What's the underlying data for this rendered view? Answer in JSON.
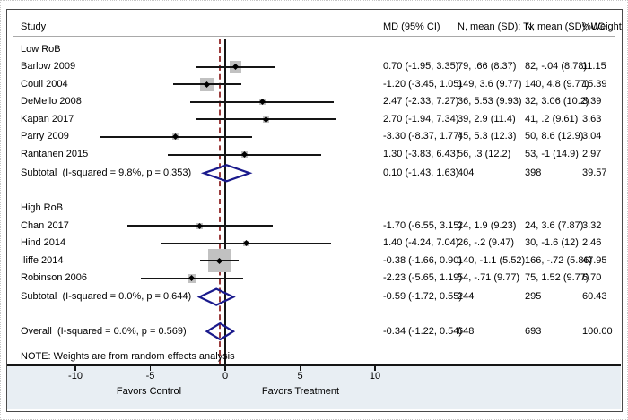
{
  "header": {
    "study": "Study",
    "md": "MD (95% CI)",
    "tx": "N, mean (SD); Tx",
    "uc": "N, mean (SD); UC",
    "weight": "%Weight"
  },
  "note": "NOTE: Weights are from random effects analysis",
  "axis": {
    "ticks": [
      -10,
      -5,
      0,
      5,
      10
    ],
    "xlim": [
      -13,
      13
    ],
    "null_line_at": 0,
    "overall_line_at": -0.34,
    "favors_left": "Favors Control",
    "favors_right": "Favors Treatment"
  },
  "colors": {
    "diamond": "#1a1a8c",
    "overall_dashed_line": "#9b3c3c",
    "square": "#c1c1c1",
    "ci_line": "#151515",
    "axis_area_bg": "#e8eef3"
  },
  "chart_data": {
    "type": "forest",
    "effect_measure": "MD",
    "groups": [
      {
        "label": "Low RoB",
        "studies": [
          {
            "study": "Barlow 2009",
            "md": 0.7,
            "ci_low": -1.95,
            "ci_high": 3.35,
            "md_text": "0.70 (-1.95, 3.35)",
            "tx": "79, .66 (8.37)",
            "uc": "82, -.04 (8.78)",
            "weight": 11.15,
            "weight_text": "11.15"
          },
          {
            "study": "Coull 2004",
            "md": -1.2,
            "ci_low": -3.45,
            "ci_high": 1.05,
            "md_text": "-1.20 (-3.45, 1.05)",
            "tx": "149, 3.6 (9.77)",
            "uc": "140, 4.8 (9.77)",
            "weight": 15.39,
            "weight_text": "15.39"
          },
          {
            "study": "DeMello 2008",
            "md": 2.47,
            "ci_low": -2.33,
            "ci_high": 7.27,
            "md_text": "2.47 (-2.33, 7.27)",
            "tx": "36, 5.53 (9.93)",
            "uc": "32, 3.06 (10.2)",
            "weight": 3.39,
            "weight_text": "3.39"
          },
          {
            "study": "Kapan 2017",
            "md": 2.7,
            "ci_low": -1.94,
            "ci_high": 7.34,
            "md_text": "2.70 (-1.94, 7.34)",
            "tx": "39, 2.9 (11.4)",
            "uc": "41, .2 (9.61)",
            "weight": 3.63,
            "weight_text": "3.63"
          },
          {
            "study": "Parry 2009",
            "md": -3.3,
            "ci_low": -8.37,
            "ci_high": 1.77,
            "md_text": "-3.30 (-8.37, 1.77)",
            "tx": "45, 5.3 (12.3)",
            "uc": "50, 8.6 (12.9)",
            "weight": 3.04,
            "weight_text": "3.04"
          },
          {
            "study": "Rantanen 2015",
            "md": 1.3,
            "ci_low": -3.83,
            "ci_high": 6.43,
            "md_text": "1.30 (-3.83, 6.43)",
            "tx": "56, .3 (12.2)",
            "uc": "53, -1 (14.9)",
            "weight": 2.97,
            "weight_text": "2.97"
          }
        ],
        "subtotal": {
          "study": "Subtotal  (I-squared = 9.8%, p = 0.353)",
          "md": 0.1,
          "ci_low": -1.43,
          "ci_high": 1.63,
          "md_text": "0.10 (-1.43, 1.63)",
          "tx": "404",
          "uc": "398",
          "weight_text": "39.57"
        }
      },
      {
        "label": "High RoB",
        "studies": [
          {
            "study": "Chan 2017",
            "md": -1.7,
            "ci_low": -6.55,
            "ci_high": 3.15,
            "md_text": "-1.70 (-6.55, 3.15)",
            "tx": "24, 1.9 (9.23)",
            "uc": "24, 3.6 (7.87)",
            "weight": 3.32,
            "weight_text": "3.32"
          },
          {
            "study": "Hind 2014",
            "md": 1.4,
            "ci_low": -4.24,
            "ci_high": 7.04,
            "md_text": "1.40 (-4.24, 7.04)",
            "tx": "26, -.2 (9.47)",
            "uc": "30, -1.6 (12)",
            "weight": 2.46,
            "weight_text": "2.46"
          },
          {
            "study": "Iliffe 2014",
            "md": -0.38,
            "ci_low": -1.66,
            "ci_high": 0.9,
            "md_text": "-0.38 (-1.66, 0.90)",
            "tx": "140, -1.1 (5.52)",
            "uc": "166, -.72 (5.86)",
            "weight": 47.95,
            "weight_text": "47.95"
          },
          {
            "study": "Robinson 2006",
            "md": -2.23,
            "ci_low": -5.65,
            "ci_high": 1.19,
            "md_text": "-2.23 (-5.65, 1.19)",
            "tx": "54, -.71 (9.77)",
            "uc": "75, 1.52 (9.77)",
            "weight": 6.7,
            "weight_text": "6.70"
          }
        ],
        "subtotal": {
          "study": "Subtotal  (I-squared = 0.0%, p = 0.644)",
          "md": -0.59,
          "ci_low": -1.72,
          "ci_high": 0.55,
          "md_text": "-0.59 (-1.72, 0.55)",
          "tx": "244",
          "uc": "295",
          "weight_text": "60.43"
        }
      }
    ],
    "overall": {
      "study": "Overall  (I-squared = 0.0%, p = 0.569)",
      "md": -0.34,
      "ci_low": -1.22,
      "ci_high": 0.54,
      "md_text": "-0.34 (-1.22, 0.54)",
      "tx": "648",
      "uc": "693",
      "weight_text": "100.00"
    }
  }
}
